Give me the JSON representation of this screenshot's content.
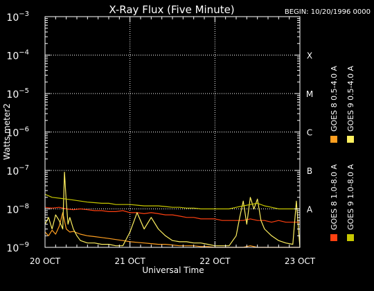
{
  "chart_data": {
    "type": "line",
    "title": "X-Ray Flux (Five Minute)",
    "begin_label": "BEGIN: 10/20/1996 0000",
    "xlabel": "Universal Time",
    "ylabel": "Watts meter2",
    "y_scale": "log",
    "ylim": [
      1e-09,
      0.001
    ],
    "y_ticks": [
      {
        "base": "10",
        "exp": "−9",
        "value": 1e-09
      },
      {
        "base": "10",
        "exp": "−8",
        "value": 1e-08
      },
      {
        "base": "10",
        "exp": "−7",
        "value": 1e-07
      },
      {
        "base": "10",
        "exp": "−6",
        "value": 1e-06
      },
      {
        "base": "10",
        "exp": "−5",
        "value": 1e-05
      },
      {
        "base": "10",
        "exp": "−4",
        "value": 0.0001
      },
      {
        "base": "10",
        "exp": "−3",
        "value": 0.001
      }
    ],
    "xlim": [
      0,
      72
    ],
    "x_unit": "hours since 20 OCT 1996 00:00 UT",
    "x_ticks": [
      {
        "label": "20 OCT",
        "value": 0
      },
      {
        "label": "21 OCT",
        "value": 24
      },
      {
        "label": "22 OCT",
        "value": 48
      },
      {
        "label": "23 OCT",
        "value": 72
      }
    ],
    "flare_classes": [
      {
        "label": "A",
        "value": 1e-08
      },
      {
        "label": "B",
        "value": 1e-07
      },
      {
        "label": "C",
        "value": 1e-06
      },
      {
        "label": "M",
        "value": 1e-05
      },
      {
        "label": "X",
        "value": 0.0001
      }
    ],
    "grid": true,
    "legend_position": "right, vertical",
    "series": [
      {
        "name": "GOES 8 1.0-8.0 A",
        "color": "#ff4010",
        "x": [
          0,
          2,
          4,
          6,
          8,
          10,
          12,
          14,
          16,
          18,
          20,
          22,
          24,
          26,
          28,
          30,
          32,
          34,
          36,
          38,
          40,
          42,
          44,
          46,
          48,
          50,
          52,
          54,
          56,
          58,
          60,
          62,
          64,
          66,
          68,
          70,
          72
        ],
        "y": [
          1.1e-08,
          1.05e-08,
          1.1e-08,
          1e-08,
          9.5e-09,
          1e-08,
          9.5e-09,
          9e-09,
          9e-09,
          8.5e-09,
          8.5e-09,
          9e-09,
          8e-09,
          8e-09,
          7.5e-09,
          8e-09,
          7.5e-09,
          7e-09,
          7e-09,
          6.5e-09,
          6e-09,
          6e-09,
          5.5e-09,
          5.5e-09,
          5.5e-09,
          5e-09,
          5e-09,
          5e-09,
          5e-09,
          5.5e-09,
          5e-09,
          5e-09,
          4.5e-09,
          5e-09,
          4.5e-09,
          4.5e-09,
          4.5e-09
        ]
      },
      {
        "name": "GOES 8 0.5-4.0 A",
        "color": "#ff9f20",
        "x": [
          0,
          1,
          2,
          3,
          4,
          5,
          6,
          7,
          8,
          10,
          12,
          14,
          16,
          18,
          20,
          22,
          24,
          26,
          28,
          30,
          32,
          34,
          36,
          38,
          40,
          42,
          44,
          46,
          48,
          50,
          52,
          54,
          56,
          58,
          60,
          62,
          64,
          66,
          68,
          70,
          71,
          72
        ],
        "y": [
          2.5e-09,
          2e-09,
          2.8e-09,
          2.2e-09,
          3.5e-09,
          8e-09,
          3e-09,
          2.5e-09,
          2.6e-09,
          2.2e-09,
          2e-09,
          1.9e-09,
          1.8e-09,
          1.7e-09,
          1.6e-09,
          1.5e-09,
          1.4e-09,
          1.35e-09,
          1.3e-09,
          1.25e-09,
          1.2e-09,
          1.2e-09,
          1.15e-09,
          1.1e-09,
          1.1e-09,
          1.1e-09,
          1.05e-09,
          1.05e-09,
          1e-09,
          1e-09,
          1e-09,
          1e-09,
          1e-09,
          1.1e-09,
          1e-09,
          1e-09,
          1e-09,
          1e-09,
          1e-09,
          1e-09,
          1e-09,
          1e-09
        ]
      },
      {
        "name": "GOES 9 0.5-4.0 A",
        "color": "#fff060",
        "x": [
          0,
          1,
          2,
          3,
          4,
          5,
          5.5,
          6,
          6.5,
          7,
          8,
          9,
          10,
          12,
          14,
          16,
          18,
          20,
          22,
          24,
          26,
          28,
          30,
          32,
          34,
          36,
          38,
          40,
          42,
          44,
          46,
          48,
          50,
          52,
          54,
          55,
          56,
          57,
          58,
          59,
          60,
          61,
          62,
          64,
          66,
          68,
          70,
          71,
          72
        ],
        "y": [
          4e-09,
          6e-09,
          3e-09,
          7e-09,
          5e-09,
          3e-09,
          9e-08,
          1.5e-08,
          4e-09,
          6e-09,
          3e-09,
          2e-09,
          1.5e-09,
          1.3e-09,
          1.3e-09,
          1.2e-09,
          1.2e-09,
          1.1e-09,
          1.1e-09,
          2.5e-09,
          8e-09,
          3e-09,
          6e-09,
          3e-09,
          2e-09,
          1.5e-09,
          1.4e-09,
          1.4e-09,
          1.3e-09,
          1.3e-09,
          1.2e-09,
          1.1e-09,
          1.1e-09,
          1.1e-09,
          2e-09,
          6e-09,
          1.6e-08,
          4e-09,
          2e-08,
          1e-08,
          1.8e-08,
          5e-09,
          3e-09,
          2e-09,
          1.5e-09,
          1.3e-09,
          1.2e-09,
          1.6e-08,
          1e-09
        ]
      },
      {
        "name": "GOES 9 1.0-8.0 A",
        "color": "#c8c800",
        "x": [
          0,
          2,
          4,
          6,
          8,
          10,
          12,
          14,
          16,
          18,
          20,
          22,
          24,
          26,
          28,
          30,
          32,
          34,
          36,
          38,
          40,
          42,
          44,
          46,
          48,
          50,
          52,
          54,
          56,
          58,
          60,
          62,
          64,
          66,
          68,
          70,
          72
        ],
        "y": [
          2.4e-08,
          2e-08,
          1.9e-08,
          1.8e-08,
          1.7e-08,
          1.6e-08,
          1.5e-08,
          1.45e-08,
          1.4e-08,
          1.4e-08,
          1.3e-08,
          1.3e-08,
          1.3e-08,
          1.25e-08,
          1.2e-08,
          1.2e-08,
          1.2e-08,
          1.15e-08,
          1.1e-08,
          1.1e-08,
          1.05e-08,
          1.05e-08,
          1e-08,
          1e-08,
          1e-08,
          1e-08,
          1e-08,
          1.1e-08,
          1.2e-08,
          1.3e-08,
          1.4e-08,
          1.2e-08,
          1.1e-08,
          1e-08,
          1e-08,
          1e-08,
          1e-08
        ]
      }
    ]
  }
}
